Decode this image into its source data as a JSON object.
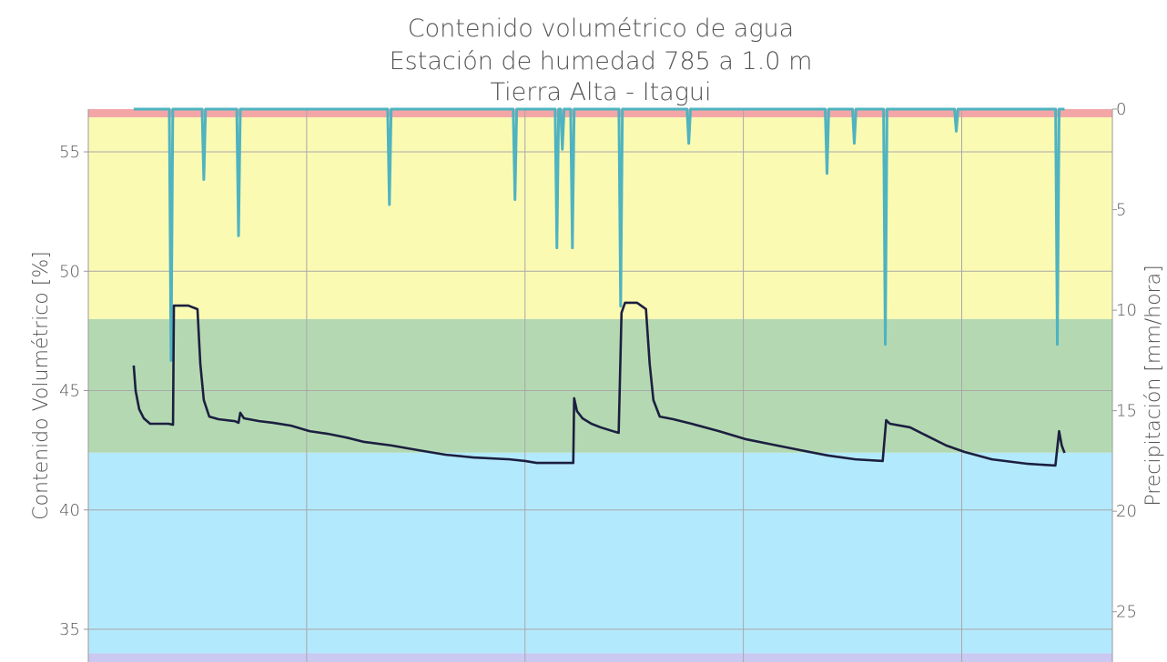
{
  "chart_data": {
    "type": "line",
    "title": [
      "Contenido volumétrico de agua",
      "Estación de humedad 785 a 1.0 m",
      "Tierra Alta - Itagui"
    ],
    "ylabel": "Contenido Volumétrico [%]",
    "y2label": "Precipitación [mm/hora]",
    "xlim": [
      0,
      4.69
    ],
    "xticks": [
      1,
      2,
      3,
      4
    ],
    "ylim": [
      33.63,
      56.79
    ],
    "yticks": [
      35,
      40,
      45,
      50,
      55
    ],
    "y2lim": [
      27.5,
      0
    ],
    "y2ticks": [
      0,
      5,
      10,
      15,
      20,
      25
    ],
    "grid": true,
    "bands": [
      {
        "from": 33.63,
        "to": 34.0,
        "color": "#c9c9f2"
      },
      {
        "from": 34.0,
        "to": 42.4,
        "color": "#b3e9fc"
      },
      {
        "from": 42.4,
        "to": 48.0,
        "color": "#b4d9b2"
      },
      {
        "from": 48.0,
        "to": 56.45,
        "color": "#fbfab3"
      },
      {
        "from": 56.45,
        "to": 56.79,
        "color": "#f4a6a6"
      }
    ],
    "series": [
      {
        "name": "Precipitación",
        "color": "#4fb3c0",
        "axis": "y2",
        "x": [
          0.208,
          0.371,
          0.379,
          0.387,
          0.521,
          0.529,
          0.537,
          0.68,
          0.688,
          0.696,
          1.371,
          1.379,
          1.387,
          1.946,
          1.954,
          1.962,
          2.138,
          2.146,
          2.154,
          2.163,
          2.171,
          2.179,
          2.209,
          2.217,
          2.225,
          2.43,
          2.438,
          2.446,
          2.742,
          2.75,
          2.758,
          3.375,
          3.383,
          3.391,
          3.5,
          3.508,
          3.516,
          3.642,
          3.65,
          3.658,
          3.967,
          3.975,
          3.983,
          4.43,
          4.438,
          4.446,
          4.471
        ],
        "values": [
          0,
          0,
          12.5,
          0,
          0,
          3.5,
          0,
          0,
          6.3,
          0,
          0,
          4.75,
          0,
          0,
          4.5,
          0,
          0,
          6.9,
          0,
          0,
          2.0,
          0,
          0,
          6.9,
          0,
          0,
          9.8,
          0,
          0,
          1.7,
          0,
          0,
          3.2,
          0,
          0,
          1.7,
          0,
          0,
          11.7,
          0,
          0,
          1.1,
          0,
          0,
          11.7,
          0,
          0
        ]
      },
      {
        "name": "Contenido Volumétrico",
        "color": "#1c1f40",
        "axis": "y",
        "x": [
          0.208,
          0.217,
          0.233,
          0.254,
          0.283,
          0.367,
          0.388,
          0.392,
          0.458,
          0.5,
          0.513,
          0.529,
          0.554,
          0.596,
          0.671,
          0.688,
          0.696,
          0.713,
          0.783,
          0.846,
          0.929,
          1.013,
          1.096,
          1.179,
          1.263,
          1.388,
          1.513,
          1.638,
          1.763,
          1.929,
          2.0,
          2.054,
          2.221,
          2.225,
          2.238,
          2.263,
          2.304,
          2.346,
          2.413,
          2.429,
          2.442,
          2.458,
          2.513,
          2.554,
          2.571,
          2.588,
          2.617,
          2.679,
          2.763,
          2.888,
          3.013,
          3.138,
          3.263,
          3.388,
          3.513,
          3.638,
          3.654,
          3.671,
          3.763,
          3.846,
          3.929,
          4.013,
          4.138,
          4.304,
          4.429,
          4.446,
          4.458,
          4.471
        ],
        "values": [
          46.05,
          44.98,
          44.22,
          43.84,
          43.61,
          43.61,
          43.57,
          48.56,
          48.56,
          48.41,
          46.12,
          44.6,
          43.91,
          43.8,
          43.72,
          43.65,
          44.07,
          43.84,
          43.72,
          43.65,
          43.53,
          43.3,
          43.19,
          43.04,
          42.85,
          42.7,
          42.5,
          42.31,
          42.2,
          42.12,
          42.05,
          41.97,
          41.97,
          44.68,
          44.14,
          43.84,
          43.61,
          43.46,
          43.27,
          43.23,
          48.26,
          48.68,
          48.68,
          48.41,
          46.12,
          44.6,
          43.91,
          43.8,
          43.61,
          43.3,
          42.96,
          42.73,
          42.5,
          42.28,
          42.12,
          42.05,
          43.76,
          43.61,
          43.46,
          43.08,
          42.7,
          42.43,
          42.12,
          41.93,
          41.86,
          43.3,
          42.7,
          42.39
        ]
      }
    ]
  }
}
